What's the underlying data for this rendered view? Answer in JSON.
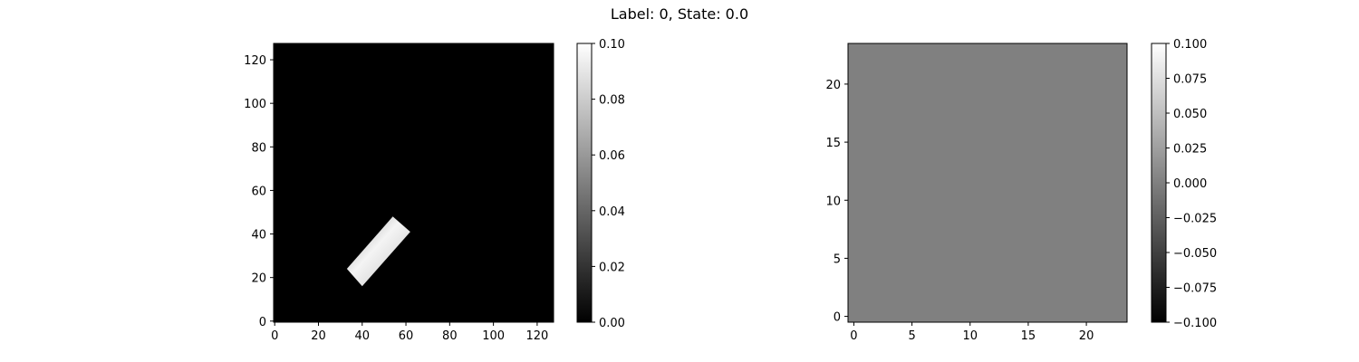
{
  "figure": {
    "suptitle": "Label: 0, State: 0.0"
  },
  "chart_data": [
    {
      "type": "heatmap",
      "xlim": [
        -0.5,
        127.5
      ],
      "ylim": [
        127.5,
        -0.5
      ],
      "x_ticks": [
        0,
        20,
        40,
        60,
        80,
        100,
        120
      ],
      "y_ticks": [
        0,
        20,
        40,
        60,
        80,
        100,
        120
      ],
      "x_tick_labels": [
        "0",
        "20",
        "40",
        "60",
        "80",
        "100",
        "120"
      ],
      "y_tick_labels": [
        "0",
        "20",
        "40",
        "60",
        "80",
        "100",
        "120"
      ],
      "colormap": "gray",
      "background_value": 0.0,
      "feature": {
        "shape": "rotated-rectangle",
        "corners": [
          [
            40,
            16
          ],
          [
            62,
            41
          ],
          [
            54,
            48
          ],
          [
            33,
            24
          ]
        ],
        "value_min": 0.06,
        "value_max": 0.1
      },
      "colorbar": {
        "range": [
          0.0,
          0.1
        ],
        "ticks": [
          0.0,
          0.02,
          0.04,
          0.06,
          0.08,
          0.1
        ],
        "tick_labels": [
          "0.00",
          "0.02",
          "0.04",
          "0.06",
          "0.08",
          "0.10"
        ]
      }
    },
    {
      "type": "heatmap",
      "xlim": [
        -0.5,
        23.5
      ],
      "ylim": [
        23.5,
        -0.5
      ],
      "x_ticks": [
        0,
        5,
        10,
        15,
        20
      ],
      "y_ticks": [
        0,
        5,
        10,
        15,
        20
      ],
      "x_tick_labels": [
        "0",
        "5",
        "10",
        "15",
        "20"
      ],
      "y_tick_labels": [
        "0",
        "5",
        "10",
        "15",
        "20"
      ],
      "colormap": "gray",
      "uniform_value": 0.0,
      "colorbar": {
        "range": [
          -0.1,
          0.1
        ],
        "ticks": [
          -0.1,
          -0.075,
          -0.05,
          -0.025,
          0.0,
          0.025,
          0.05,
          0.075,
          0.1
        ],
        "tick_labels": [
          "−0.100",
          "−0.075",
          "−0.050",
          "−0.025",
          "0.000",
          "0.025",
          "0.050",
          "0.075",
          "0.100"
        ]
      }
    }
  ]
}
